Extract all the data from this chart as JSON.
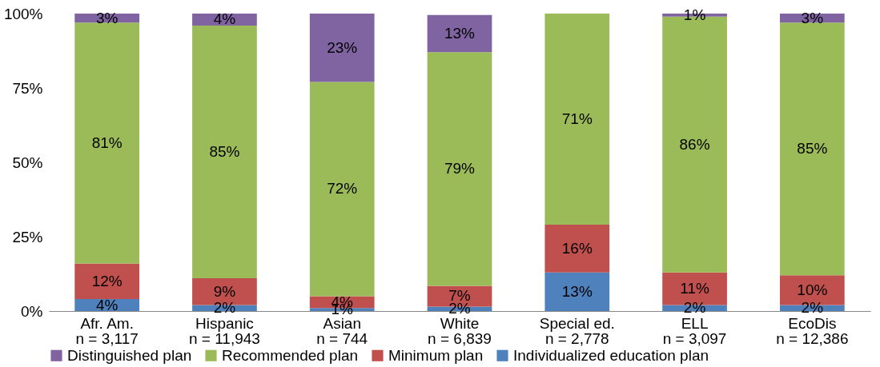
{
  "chart_data": {
    "type": "bar",
    "stacked": true,
    "categories": [
      "Afr. Am.\nn = 3,117",
      "Hispanic\nn = 11,943",
      "Asian\nn = 744",
      "White\nn = 6,839",
      "Special ed.\nn = 2,778",
      "ELL\nn = 3,097",
      "EcoDis\nn = 12,386"
    ],
    "series": [
      {
        "name": "Individualized education plan",
        "color": "#4f81bd",
        "values": [
          4,
          2,
          1,
          1.5,
          13,
          2,
          2
        ],
        "value_labels": [
          "4%",
          "2%",
          "1%",
          "2%",
          "13%",
          "2%",
          "2%"
        ]
      },
      {
        "name": "Minimum plan",
        "color": "#c0504d",
        "values": [
          12,
          9,
          4,
          7,
          16,
          11,
          10
        ],
        "value_labels": [
          "12%",
          "9%",
          "4%",
          "7%",
          "16%",
          "11%",
          "10%"
        ]
      },
      {
        "name": "Recommended plan",
        "color": "#9bbb59",
        "values": [
          81,
          85,
          72,
          78.5,
          71,
          86,
          85
        ],
        "value_labels": [
          "81%",
          "85%",
          "72%",
          "79%",
          "71%",
          "86%",
          "85%"
        ]
      },
      {
        "name": "Distinguished plan",
        "color": "#8064a2",
        "values": [
          3,
          4,
          23,
          12.5,
          null,
          1,
          3
        ],
        "value_labels": [
          "3%",
          "4%",
          "23%",
          "13%",
          null,
          "1%",
          "3%"
        ]
      }
    ],
    "ylim": [
      0,
      100
    ],
    "yticks": [
      {
        "value": 0,
        "label": "0%"
      },
      {
        "value": 25,
        "label": "25%"
      },
      {
        "value": 50,
        "label": "50%"
      },
      {
        "value": 75,
        "label": "75%"
      },
      {
        "value": 100,
        "label": "100%"
      }
    ],
    "grid": false,
    "legend": "bottom"
  }
}
